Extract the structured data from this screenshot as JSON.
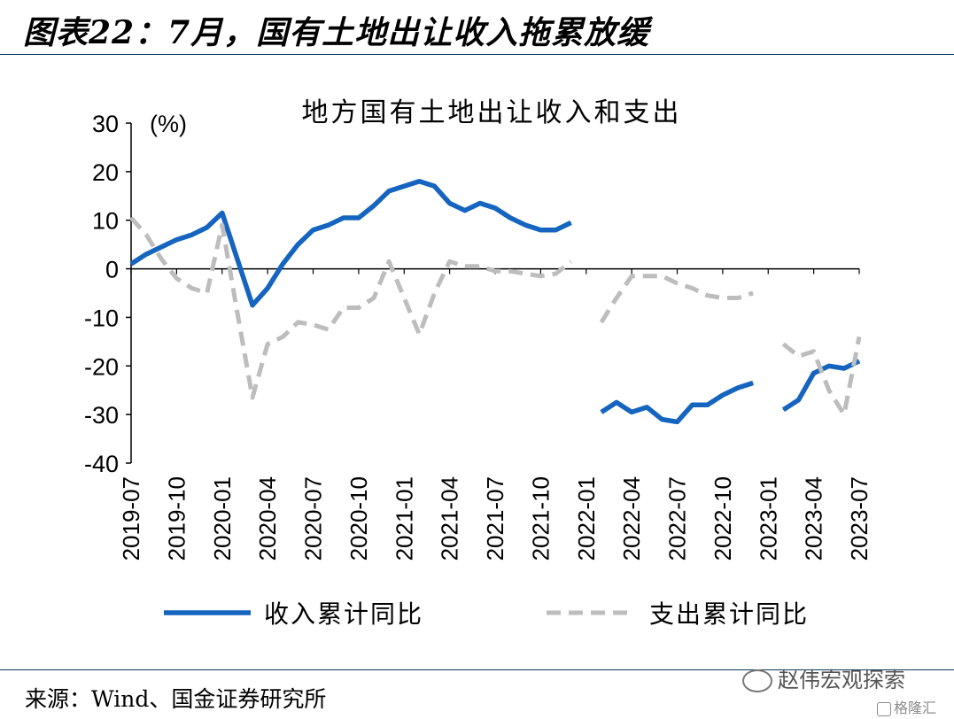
{
  "figure_title": "图表22：7月，国有土地出让收入拖累放缓",
  "source": "来源：Wind、国金证券研究所",
  "watermark": "赵伟宏观探索",
  "logo_text": "格隆汇",
  "chart_data": {
    "type": "line",
    "title": "地方国有土地出让收入和支出",
    "unit_label": "(%)",
    "ylim": [
      -40,
      30
    ],
    "yticks": [
      30,
      20,
      10,
      0,
      -10,
      -20,
      -30,
      -40
    ],
    "x": [
      "2019-07",
      "2019-08",
      "2019-09",
      "2019-10",
      "2019-11",
      "2019-12",
      "2020-01",
      "2020-02",
      "2020-03",
      "2020-04",
      "2020-05",
      "2020-06",
      "2020-07",
      "2020-08",
      "2020-09",
      "2020-10",
      "2020-11",
      "2020-12",
      "2021-01",
      "2021-02",
      "2021-03",
      "2021-04",
      "2021-05",
      "2021-06",
      "2021-07",
      "2021-08",
      "2021-09",
      "2021-10",
      "2021-11",
      "2021-12",
      "2022-01",
      "2022-02",
      "2022-03",
      "2022-04",
      "2022-05",
      "2022-06",
      "2022-07",
      "2022-08",
      "2022-09",
      "2022-10",
      "2022-11",
      "2022-12",
      "2023-01",
      "2023-02",
      "2023-03",
      "2023-04",
      "2023-05",
      "2023-06",
      "2023-07"
    ],
    "xtick_labels": [
      "2019-07",
      "2019-10",
      "2020-01",
      "2020-04",
      "2020-07",
      "2020-10",
      "2021-01",
      "2021-04",
      "2021-07",
      "2021-10",
      "2022-01",
      "2022-04",
      "2022-07",
      "2022-10",
      "2023-01",
      "2023-04",
      "2023-07"
    ],
    "series": [
      {
        "name": "收入累计同比",
        "color": "#1565c0",
        "style": "solid",
        "values": [
          1,
          3,
          4.5,
          6,
          7,
          8.5,
          11.5,
          2,
          -7.5,
          -4,
          1,
          5,
          8,
          9,
          10.5,
          10.5,
          13,
          16,
          17,
          18,
          17,
          13.5,
          12,
          13.5,
          12.5,
          10.5,
          9,
          8,
          8,
          9.5,
          null,
          -29.5,
          -27.5,
          -29.5,
          -28.5,
          -31,
          -31.5,
          -28,
          -28,
          -26,
          -24.5,
          -23.5,
          null,
          -29,
          -27,
          -21.5,
          -20,
          -20.5,
          -19
        ]
      },
      {
        "name": "支出累计同比",
        "color": "#bdbdbd",
        "style": "dashed",
        "values": [
          10.5,
          7,
          2,
          -2,
          -4,
          -5,
          9,
          -9,
          -26.5,
          -15.5,
          -14,
          -11,
          -11.5,
          -12.5,
          -8,
          -8,
          -6,
          1.5,
          -6,
          -13.5,
          -5,
          1.5,
          0.5,
          0.5,
          -0.5,
          -0.5,
          -1,
          -1.5,
          -1,
          1.5,
          null,
          -11,
          -6,
          -1.5,
          -1.5,
          -1.5,
          -3,
          -4,
          -5.5,
          -6,
          -6,
          -5,
          null,
          -15.5,
          -18,
          -17,
          -25,
          -30,
          -14
        ]
      }
    ]
  }
}
